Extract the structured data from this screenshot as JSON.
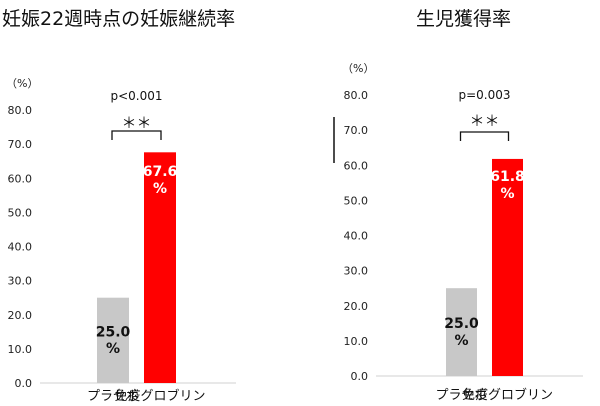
{
  "chart_data": [
    {
      "type": "bar",
      "title": "妊娠22週時点の妊娠継続率",
      "ylabel": "（%）",
      "ylim": [
        0,
        80
      ],
      "yticks": [
        "0.0",
        "10.0",
        "20.0",
        "30.0",
        "40.0",
        "50.0",
        "60.0",
        "70.0",
        "80.0"
      ],
      "categories": [
        "プラセボ",
        "免疫グロブリン"
      ],
      "values": [
        25.0,
        67.6
      ],
      "value_labels": [
        "25.0\n%",
        "67.6\n%"
      ],
      "colors": [
        "#c8c8c8",
        "#ff0000"
      ],
      "value_label_colors": [
        "#111111",
        "#ffffff"
      ],
      "annotation": {
        "p_value": "p<0.001",
        "significance": "＊＊"
      },
      "grid": false
    },
    {
      "type": "bar",
      "title": "生児獲得率",
      "ylabel": "（%）",
      "ylim": [
        0,
        80
      ],
      "yticks": [
        "0.0",
        "10.0",
        "20.0",
        "30.0",
        "40.0",
        "50.0",
        "60.0",
        "70.0",
        "80.0"
      ],
      "categories": [
        "プラセボ",
        "免疫グロブリン"
      ],
      "values": [
        25.0,
        61.8
      ],
      "value_labels": [
        "25.0\n%",
        "61.8\n%"
      ],
      "colors": [
        "#c8c8c8",
        "#ff0000"
      ],
      "value_label_colors": [
        "#111111",
        "#ffffff"
      ],
      "annotation": {
        "p_value": "p=0.003",
        "significance": "＊＊"
      },
      "grid": false
    }
  ]
}
